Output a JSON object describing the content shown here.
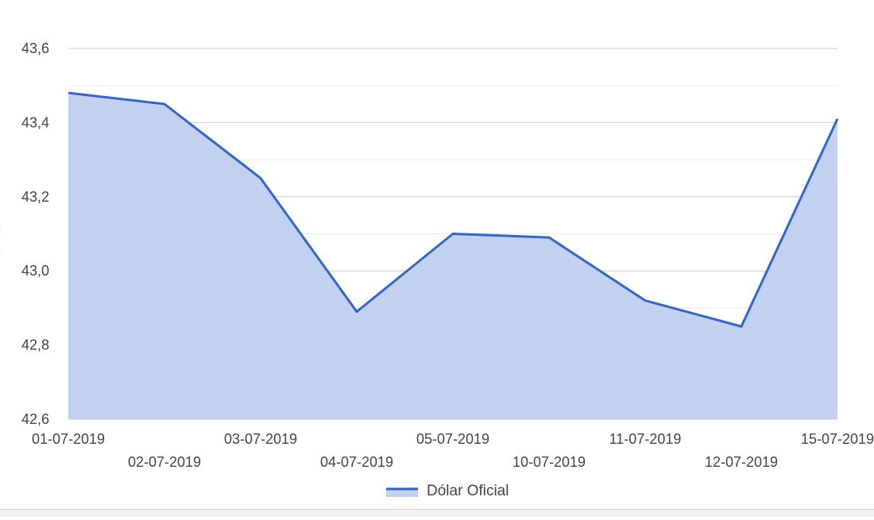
{
  "chart_data": {
    "type": "area",
    "title": "",
    "xlabel": "",
    "ylabel": "",
    "categories": [
      "01-07-2019",
      "02-07-2019",
      "03-07-2019",
      "04-07-2019",
      "05-07-2019",
      "10-07-2019",
      "11-07-2019",
      "12-07-2019",
      "15-07-2019"
    ],
    "series": [
      {
        "name": "Dólar Oficial",
        "values": [
          43.48,
          43.45,
          43.25,
          42.89,
          43.1,
          43.09,
          42.92,
          42.85,
          43.41
        ]
      }
    ],
    "ylim": [
      42.6,
      43.6
    ],
    "yticks": [
      "42,6",
      "42,8",
      "43,0",
      "43,2",
      "43,4",
      "43,6"
    ],
    "grid": true,
    "legend_position": "bottom",
    "colors": {
      "line": "#3366cc",
      "fill": "#c3d1f0",
      "grid_major": "#cccccc",
      "grid_minor": "#ebebeb",
      "axis_text": "#444444"
    }
  }
}
